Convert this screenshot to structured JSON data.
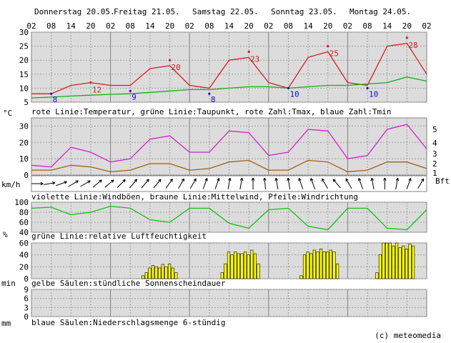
{
  "days": [
    {
      "label": "Donnerstag 20.05."
    },
    {
      "label": "Freitag 21.05."
    },
    {
      "label": "Samstag 22.05."
    },
    {
      "label": "Sonntag 23.05."
    },
    {
      "label": "Montag 24.05."
    }
  ],
  "hour_ticks": [
    "02",
    "08",
    "14",
    "20",
    "02",
    "08",
    "14",
    "20",
    "02",
    "08",
    "14",
    "20",
    "02",
    "08",
    "14",
    "20",
    "02",
    "08",
    "14",
    "20",
    "02"
  ],
  "credit": "(c) meteomedia",
  "colors": {
    "temperature": "#d42020",
    "dewpoint": "#10b010",
    "tmin": "#1010d0",
    "gust": "#d020d0",
    "mean_wind": "#a06010",
    "humidity": "#10c010",
    "sunshine": "#ffff00",
    "panel_bg": "#dcdcdc",
    "grid": "#a0a0a0"
  },
  "chart_data": [
    {
      "type": "line",
      "id": "temperature",
      "unit_label": "°C",
      "caption": "rote Linie:Temperatur, grüne Linie:Taupunkt, rote Zahl:Tmax, blaue Zahl:Tmin",
      "ylim": [
        5,
        30
      ],
      "yticks": [
        "30",
        "25",
        "20",
        "15",
        "10",
        "5"
      ],
      "x_unit": "hours",
      "series": [
        {
          "role": "temperature",
          "x": [
            0,
            6,
            12,
            18,
            24,
            30,
            36,
            42,
            48,
            54,
            60,
            66,
            72,
            78,
            84,
            90,
            96,
            102,
            108,
            114,
            120
          ],
          "values": [
            8,
            8,
            11,
            12,
            11,
            11,
            17,
            18,
            11,
            10,
            20,
            21,
            12,
            10,
            21,
            23,
            12,
            11,
            25,
            26,
            15
          ]
        },
        {
          "role": "dewpoint",
          "x": [
            0,
            6,
            12,
            18,
            24,
            30,
            36,
            42,
            48,
            54,
            60,
            66,
            72,
            78,
            84,
            90,
            96,
            102,
            108,
            114,
            120
          ],
          "values": [
            6.5,
            6.8,
            7.2,
            7.5,
            7.8,
            8,
            8.5,
            9,
            9.5,
            9.5,
            10,
            10.5,
            10.5,
            10,
            10.5,
            11,
            11,
            11.5,
            12,
            14,
            12.5
          ]
        }
      ],
      "annotations": [
        {
          "kind": "tmin",
          "x": 6,
          "value": 8,
          "label": "8"
        },
        {
          "kind": "tmax",
          "x": 18,
          "value": 12,
          "label": "12"
        },
        {
          "kind": "tmin",
          "x": 30,
          "value": 9,
          "label": "9"
        },
        {
          "kind": "tmax",
          "x": 42,
          "value": 20,
          "label": "20"
        },
        {
          "kind": "tmin",
          "x": 54,
          "value": 8,
          "label": "8"
        },
        {
          "kind": "tmax",
          "x": 66,
          "value": 23,
          "label": "23"
        },
        {
          "kind": "tmin",
          "x": 78,
          "value": 10,
          "label": "10"
        },
        {
          "kind": "tmax",
          "x": 90,
          "value": 25,
          "label": "25"
        },
        {
          "kind": "tmin",
          "x": 102,
          "value": 10,
          "label": "10"
        },
        {
          "kind": "tmax",
          "x": 114,
          "value": 28,
          "label": "28"
        }
      ]
    },
    {
      "type": "line",
      "id": "wind",
      "unit_label": "km/h",
      "right_unit_label": "Bft",
      "caption": "violette Linie:Windböen, braune Linie:Mittelwind, Pfeile:Windrichtung",
      "ylim": [
        0,
        35
      ],
      "yticks": [
        "30",
        "20",
        "10",
        "0"
      ],
      "bft_ticks": [
        "5",
        "4",
        "3",
        "2",
        "1"
      ],
      "series": [
        {
          "role": "gust",
          "x": [
            0,
            6,
            12,
            18,
            24,
            30,
            36,
            42,
            48,
            54,
            60,
            66,
            72,
            78,
            84,
            90,
            96,
            102,
            108,
            114,
            120
          ],
          "values": [
            6,
            5,
            17,
            14,
            8,
            10,
            22,
            24,
            14,
            14,
            27,
            26,
            12,
            14,
            28,
            27,
            10,
            12,
            28,
            31,
            16
          ]
        },
        {
          "role": "mean_wind",
          "x": [
            0,
            6,
            12,
            18,
            24,
            30,
            36,
            42,
            48,
            54,
            60,
            66,
            72,
            78,
            84,
            90,
            96,
            102,
            108,
            114,
            120
          ],
          "values": [
            3,
            3,
            6,
            5,
            2,
            3,
            7,
            7,
            3,
            4,
            8,
            9,
            3,
            3,
            9,
            8,
            2,
            3,
            8,
            8,
            4
          ]
        }
      ],
      "wind_direction_degrees": [
        270,
        260,
        250,
        240,
        240,
        230,
        230,
        225,
        220,
        220,
        220,
        215,
        210,
        210,
        200,
        200,
        190,
        190,
        180,
        175,
        170,
        170,
        160,
        160,
        150,
        140,
        150,
        160,
        170,
        180,
        190,
        200,
        210
      ]
    },
    {
      "type": "line",
      "id": "humidity",
      "unit_label": "%",
      "caption": "grüne Linie:relative Luftfeuchtigkeit",
      "ylim": [
        40,
        100
      ],
      "yticks": [
        "100",
        "80",
        "60",
        "40"
      ],
      "series": [
        {
          "role": "humidity",
          "x": [
            0,
            6,
            12,
            18,
            24,
            30,
            36,
            42,
            48,
            54,
            60,
            66,
            72,
            78,
            84,
            90,
            96,
            102,
            108,
            114,
            120
          ],
          "values": [
            88,
            90,
            75,
            80,
            92,
            88,
            65,
            60,
            88,
            88,
            58,
            48,
            85,
            88,
            52,
            45,
            88,
            88,
            48,
            45,
            85
          ]
        }
      ]
    },
    {
      "type": "bar",
      "id": "sunshine",
      "unit_label": "min",
      "caption": "gelbe Säulen:stündliche Sonnenscheindauer",
      "ylim": [
        0,
        60
      ],
      "yticks": [
        "60",
        "40",
        "20",
        "0"
      ],
      "x_unit": "hours",
      "bars": [
        {
          "x": 34,
          "value": 5
        },
        {
          "x": 35,
          "value": 10
        },
        {
          "x": 36,
          "value": 18
        },
        {
          "x": 37,
          "value": 22
        },
        {
          "x": 38,
          "value": 20
        },
        {
          "x": 39,
          "value": 18
        },
        {
          "x": 40,
          "value": 24
        },
        {
          "x": 41,
          "value": 20
        },
        {
          "x": 42,
          "value": 25
        },
        {
          "x": 43,
          "value": 18
        },
        {
          "x": 44,
          "value": 10
        },
        {
          "x": 58,
          "value": 10
        },
        {
          "x": 59,
          "value": 25
        },
        {
          "x": 60,
          "value": 45
        },
        {
          "x": 61,
          "value": 40
        },
        {
          "x": 62,
          "value": 45
        },
        {
          "x": 63,
          "value": 42
        },
        {
          "x": 64,
          "value": 42
        },
        {
          "x": 65,
          "value": 45
        },
        {
          "x": 66,
          "value": 40
        },
        {
          "x": 67,
          "value": 48
        },
        {
          "x": 68,
          "value": 42
        },
        {
          "x": 69,
          "value": 25
        },
        {
          "x": 82,
          "value": 5
        },
        {
          "x": 83,
          "value": 40
        },
        {
          "x": 84,
          "value": 45
        },
        {
          "x": 85,
          "value": 42
        },
        {
          "x": 86,
          "value": 48
        },
        {
          "x": 87,
          "value": 45
        },
        {
          "x": 88,
          "value": 50
        },
        {
          "x": 89,
          "value": 45
        },
        {
          "x": 90,
          "value": 45
        },
        {
          "x": 91,
          "value": 48
        },
        {
          "x": 92,
          "value": 45
        },
        {
          "x": 93,
          "value": 25
        },
        {
          "x": 105,
          "value": 10
        },
        {
          "x": 106,
          "value": 40
        },
        {
          "x": 107,
          "value": 60
        },
        {
          "x": 108,
          "value": 62
        },
        {
          "x": 109,
          "value": 60
        },
        {
          "x": 110,
          "value": 55
        },
        {
          "x": 111,
          "value": 62
        },
        {
          "x": 112,
          "value": 52
        },
        {
          "x": 113,
          "value": 55
        },
        {
          "x": 114,
          "value": 50
        },
        {
          "x": 115,
          "value": 58
        },
        {
          "x": 116,
          "value": 55
        }
      ]
    },
    {
      "type": "bar",
      "id": "precipitation",
      "unit_label": "mm",
      "caption": "blaue Säulen:Niederschlagsmenge 6-stündig",
      "ylim": [
        0,
        9
      ],
      "yticks": [
        "9",
        "6",
        "3",
        "0"
      ],
      "bars": []
    }
  ]
}
